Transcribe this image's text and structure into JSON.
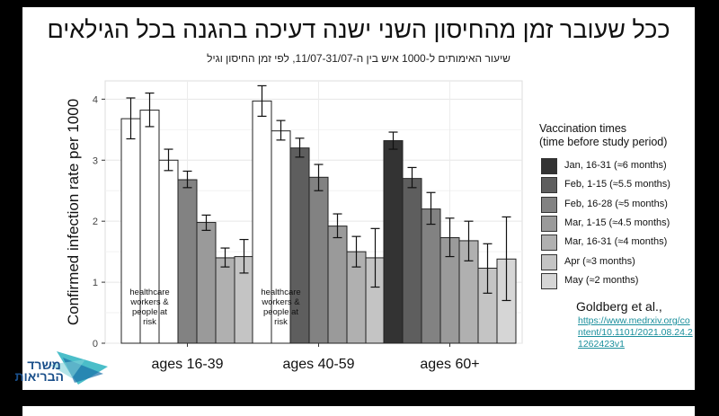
{
  "title": "ככל שעובר זמן מהחיסון השני ישנה דעיכה בהגנה בכל הגילאים",
  "subtitle": "שיעור האימותים ל-1000 איש בין ה-11/07-31/07, לפי זמן החיסון וגיל",
  "legend": {
    "title_line1": "Vaccination times",
    "title_line2": "(time before study period)"
  },
  "citation": {
    "author": "Goldberg et al.,",
    "link": "https://www.medrxiv.org/content/10.1101/2021.08.24.21262423v1"
  },
  "logo": {
    "text": "משרד הבריאות"
  },
  "annotation_text": [
    "healthcare",
    "workers &",
    "people at",
    "risk"
  ],
  "colors": {
    "hcw": "#ffffff",
    "jan16_31": "#333333",
    "feb1_15": "#5e5e5e",
    "feb16_28": "#828282",
    "mar1_15": "#9a9a9a",
    "mar16_31": "#b0b0b0",
    "apr": "#c4c4c4",
    "may": "#d6d6d6",
    "link": "#1a8f9c"
  },
  "chart_data": {
    "type": "bar",
    "ylabel": "Confirmed infection rate per 1000",
    "ylim": [
      0,
      4.3
    ],
    "yticks": [
      0,
      1,
      2,
      3,
      4
    ],
    "grid": true,
    "legend_position": "right",
    "categories": [
      "ages 16-39",
      "ages 40-59",
      "ages 60+"
    ],
    "legend_entries": [
      {
        "label": "Jan, 16-31 (≈6 months)",
        "color": "#333333"
      },
      {
        "label": "Feb, 1-15 (≈5.5 months)",
        "color": "#5e5e5e"
      },
      {
        "label": "Feb, 16-28 (≈5 months)",
        "color": "#828282"
      },
      {
        "label": "Mar, 1-15 (≈4.5 months)",
        "color": "#9a9a9a"
      },
      {
        "label": "Mar, 16-31 (≈4 months)",
        "color": "#b0b0b0"
      },
      {
        "label": "Apr (≈3 months)",
        "color": "#c4c4c4"
      },
      {
        "label": "May (≈2 months)",
        "color": "#d6d6d6"
      }
    ],
    "groups": [
      {
        "category": "ages 16-39",
        "bars": [
          {
            "value": 3.68,
            "low": 3.35,
            "high": 4.02,
            "color": "#ffffff"
          },
          {
            "value": 3.82,
            "low": 3.55,
            "high": 4.1,
            "color": "#ffffff"
          },
          {
            "value": 3.0,
            "low": 2.83,
            "high": 3.18,
            "color": "#ffffff"
          },
          {
            "value": 2.68,
            "low": 2.55,
            "high": 2.82,
            "color": "#828282"
          },
          {
            "value": 1.98,
            "low": 1.85,
            "high": 2.1,
            "color": "#9a9a9a"
          },
          {
            "value": 1.4,
            "low": 1.25,
            "high": 1.56,
            "color": "#b0b0b0"
          },
          {
            "value": 1.42,
            "low": 1.15,
            "high": 1.7,
            "color": "#c4c4c4"
          }
        ]
      },
      {
        "category": "ages 40-59",
        "bars": [
          {
            "value": 3.97,
            "low": 3.72,
            "high": 4.22,
            "color": "#ffffff"
          },
          {
            "value": 3.48,
            "low": 3.33,
            "high": 3.65,
            "color": "#ffffff"
          },
          {
            "value": 3.2,
            "low": 3.05,
            "high": 3.36,
            "color": "#5e5e5e"
          },
          {
            "value": 2.72,
            "low": 2.5,
            "high": 2.93,
            "color": "#828282"
          },
          {
            "value": 1.92,
            "low": 1.73,
            "high": 2.12,
            "color": "#9a9a9a"
          },
          {
            "value": 1.5,
            "low": 1.25,
            "high": 1.75,
            "color": "#b0b0b0"
          },
          {
            "value": 1.4,
            "low": 0.92,
            "high": 1.88,
            "color": "#c4c4c4"
          }
        ]
      },
      {
        "category": "ages 60+",
        "bars": [
          {
            "value": 3.32,
            "low": 3.18,
            "high": 3.46,
            "color": "#333333"
          },
          {
            "value": 2.7,
            "low": 2.55,
            "high": 2.88,
            "color": "#5e5e5e"
          },
          {
            "value": 2.2,
            "low": 1.95,
            "high": 2.47,
            "color": "#828282"
          },
          {
            "value": 1.73,
            "low": 1.42,
            "high": 2.05,
            "color": "#9a9a9a"
          },
          {
            "value": 1.68,
            "low": 1.35,
            "high": 2.0,
            "color": "#b0b0b0"
          },
          {
            "value": 1.23,
            "low": 0.82,
            "high": 1.63,
            "color": "#c4c4c4"
          },
          {
            "value": 1.38,
            "low": 0.7,
            "high": 2.07,
            "color": "#d6d6d6"
          }
        ]
      }
    ]
  }
}
